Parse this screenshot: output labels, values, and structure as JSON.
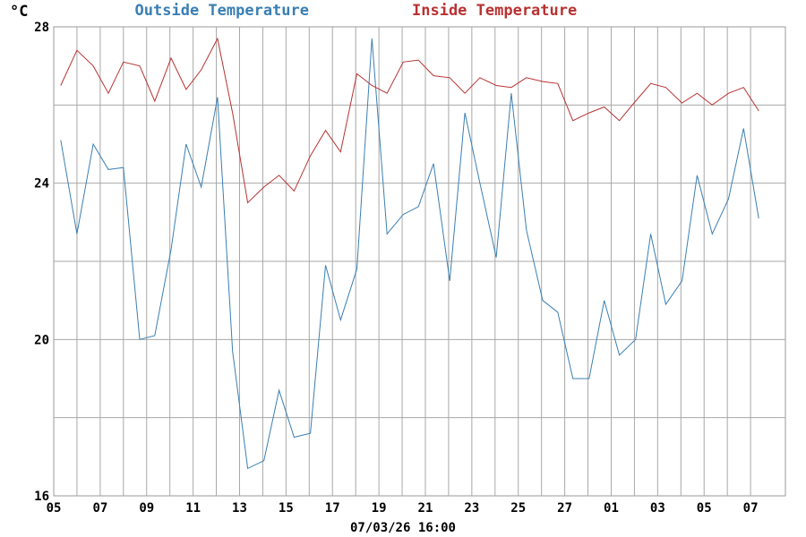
{
  "chart_data": {
    "type": "line",
    "title_parts": [
      {
        "text": "Outside Temperature",
        "color": "#3a7fb3"
      },
      {
        "text": "Inside Temperature",
        "color": "#b83232"
      }
    ],
    "ylabel": "°C",
    "xlabel": "07/03/26 16:00",
    "ylim": [
      16,
      28
    ],
    "y_ticks": [
      16,
      20,
      24,
      28
    ],
    "grid": true,
    "x_days": 30,
    "x_tick_labels": [
      "05",
      "07",
      "09",
      "11",
      "13",
      "15",
      "17",
      "19",
      "21",
      "23",
      "25",
      "27",
      "01",
      "03",
      "05",
      "07"
    ],
    "series": [
      {
        "name": "Outside Temperature",
        "color": "#3a7fb3",
        "x": [
          0.3,
          1,
          1.7,
          2.35,
          3,
          3.7,
          4.35,
          5.05,
          5.7,
          6.35,
          7.05,
          7.7,
          8.35,
          9.05,
          9.7,
          10.35,
          11.05,
          11.7,
          12.35,
          13.05,
          13.7,
          14.35,
          15.05,
          15.7,
          16.35,
          17.05,
          17.7,
          18.35,
          19.05,
          19.7,
          20.35,
          21.05,
          21.7,
          22.35,
          23.05,
          23.7,
          24.35,
          25.05,
          25.7,
          26.35,
          27.05,
          27.7,
          28.35,
          29.05,
          29.7,
          30.35
        ],
        "y": [
          25.1,
          22.7,
          25.0,
          24.35,
          24.4,
          20.0,
          20.1,
          22.3,
          25.0,
          23.9,
          26.2,
          19.7,
          16.7,
          16.9,
          18.7,
          17.5,
          17.6,
          21.9,
          20.5,
          21.8,
          27.7,
          22.7,
          23.2,
          23.4,
          24.5,
          21.5,
          25.8,
          24.0,
          22.1,
          26.3,
          22.8,
          21.0,
          20.7,
          19.0,
          19.0,
          21.0,
          19.6,
          20.0,
          22.7,
          20.9,
          21.5,
          24.2,
          22.7,
          23.6,
          25.4,
          23.1
        ]
      },
      {
        "name": "Inside Temperature",
        "color": "#b83232",
        "x": [
          0.3,
          1,
          1.7,
          2.35,
          3,
          3.7,
          4.35,
          5.05,
          5.7,
          6.35,
          7.05,
          7.7,
          8.35,
          9.05,
          9.7,
          10.35,
          11.05,
          11.7,
          12.35,
          13.05,
          13.7,
          14.35,
          15.05,
          15.7,
          16.35,
          17.05,
          17.7,
          18.35,
          19.05,
          19.7,
          20.35,
          21.05,
          21.7,
          22.35,
          23.05,
          23.7,
          24.35,
          25.05,
          25.7,
          26.35,
          27.05,
          27.7,
          28.35,
          29.05,
          29.7,
          30.35
        ],
        "y": [
          26.5,
          27.4,
          27.0,
          26.3,
          27.1,
          27.0,
          26.1,
          27.2,
          26.4,
          26.9,
          27.7,
          25.8,
          23.5,
          23.9,
          24.2,
          23.8,
          24.7,
          25.35,
          24.8,
          26.8,
          26.5,
          26.3,
          27.1,
          27.15,
          26.75,
          26.7,
          26.3,
          26.7,
          26.5,
          26.45,
          26.7,
          26.6,
          26.55,
          25.6,
          25.8,
          25.95,
          25.6,
          26.1,
          26.55,
          26.45,
          26.05,
          26.3,
          26.0,
          26.3,
          26.45,
          25.85
        ]
      }
    ]
  }
}
